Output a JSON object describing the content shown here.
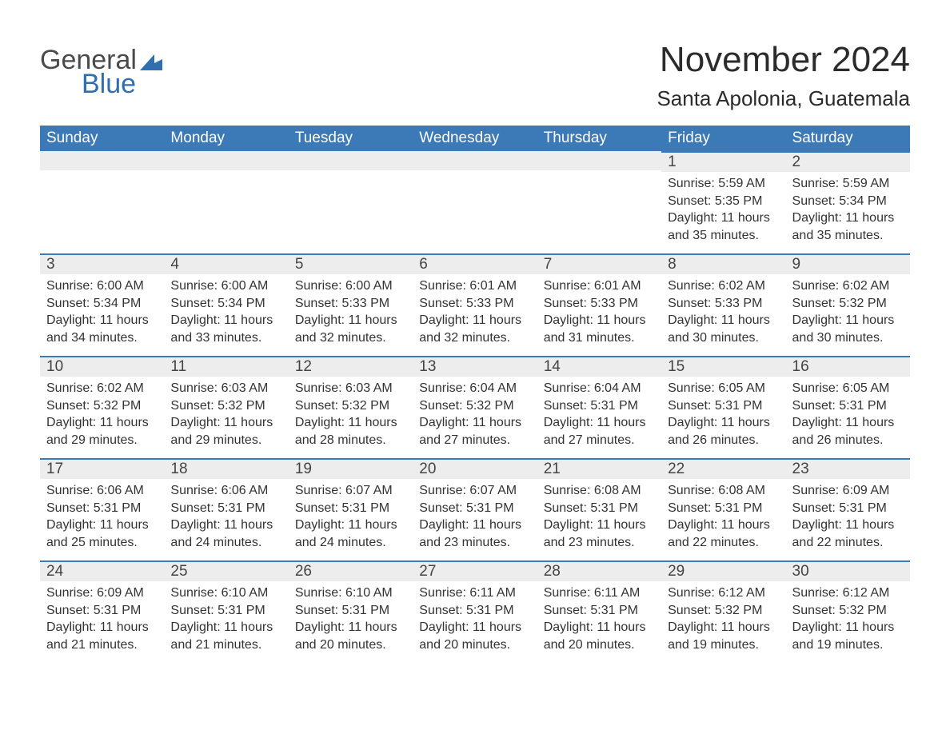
{
  "logo": {
    "word1": "General",
    "word2": "Blue",
    "icon_color": "#2f6fb0"
  },
  "title": "November 2024",
  "location": "Santa Apolonia, Guatemala",
  "colors": {
    "header_bg": "#3b79b7",
    "header_text": "#ffffff",
    "daynum_bg": "#ededed",
    "daynum_border": "#3b79b7",
    "text": "#333333",
    "background": "#ffffff"
  },
  "columns": [
    "Sunday",
    "Monday",
    "Tuesday",
    "Wednesday",
    "Thursday",
    "Friday",
    "Saturday"
  ],
  "weeks": [
    [
      null,
      null,
      null,
      null,
      null,
      {
        "n": "1",
        "sr": "Sunrise: 5:59 AM",
        "ss": "Sunset: 5:35 PM",
        "dl": "Daylight: 11 hours and 35 minutes."
      },
      {
        "n": "2",
        "sr": "Sunrise: 5:59 AM",
        "ss": "Sunset: 5:34 PM",
        "dl": "Daylight: 11 hours and 35 minutes."
      }
    ],
    [
      {
        "n": "3",
        "sr": "Sunrise: 6:00 AM",
        "ss": "Sunset: 5:34 PM",
        "dl": "Daylight: 11 hours and 34 minutes."
      },
      {
        "n": "4",
        "sr": "Sunrise: 6:00 AM",
        "ss": "Sunset: 5:34 PM",
        "dl": "Daylight: 11 hours and 33 minutes."
      },
      {
        "n": "5",
        "sr": "Sunrise: 6:00 AM",
        "ss": "Sunset: 5:33 PM",
        "dl": "Daylight: 11 hours and 32 minutes."
      },
      {
        "n": "6",
        "sr": "Sunrise: 6:01 AM",
        "ss": "Sunset: 5:33 PM",
        "dl": "Daylight: 11 hours and 32 minutes."
      },
      {
        "n": "7",
        "sr": "Sunrise: 6:01 AM",
        "ss": "Sunset: 5:33 PM",
        "dl": "Daylight: 11 hours and 31 minutes."
      },
      {
        "n": "8",
        "sr": "Sunrise: 6:02 AM",
        "ss": "Sunset: 5:33 PM",
        "dl": "Daylight: 11 hours and 30 minutes."
      },
      {
        "n": "9",
        "sr": "Sunrise: 6:02 AM",
        "ss": "Sunset: 5:32 PM",
        "dl": "Daylight: 11 hours and 30 minutes."
      }
    ],
    [
      {
        "n": "10",
        "sr": "Sunrise: 6:02 AM",
        "ss": "Sunset: 5:32 PM",
        "dl": "Daylight: 11 hours and 29 minutes."
      },
      {
        "n": "11",
        "sr": "Sunrise: 6:03 AM",
        "ss": "Sunset: 5:32 PM",
        "dl": "Daylight: 11 hours and 29 minutes."
      },
      {
        "n": "12",
        "sr": "Sunrise: 6:03 AM",
        "ss": "Sunset: 5:32 PM",
        "dl": "Daylight: 11 hours and 28 minutes."
      },
      {
        "n": "13",
        "sr": "Sunrise: 6:04 AM",
        "ss": "Sunset: 5:32 PM",
        "dl": "Daylight: 11 hours and 27 minutes."
      },
      {
        "n": "14",
        "sr": "Sunrise: 6:04 AM",
        "ss": "Sunset: 5:31 PM",
        "dl": "Daylight: 11 hours and 27 minutes."
      },
      {
        "n": "15",
        "sr": "Sunrise: 6:05 AM",
        "ss": "Sunset: 5:31 PM",
        "dl": "Daylight: 11 hours and 26 minutes."
      },
      {
        "n": "16",
        "sr": "Sunrise: 6:05 AM",
        "ss": "Sunset: 5:31 PM",
        "dl": "Daylight: 11 hours and 26 minutes."
      }
    ],
    [
      {
        "n": "17",
        "sr": "Sunrise: 6:06 AM",
        "ss": "Sunset: 5:31 PM",
        "dl": "Daylight: 11 hours and 25 minutes."
      },
      {
        "n": "18",
        "sr": "Sunrise: 6:06 AM",
        "ss": "Sunset: 5:31 PM",
        "dl": "Daylight: 11 hours and 24 minutes."
      },
      {
        "n": "19",
        "sr": "Sunrise: 6:07 AM",
        "ss": "Sunset: 5:31 PM",
        "dl": "Daylight: 11 hours and 24 minutes."
      },
      {
        "n": "20",
        "sr": "Sunrise: 6:07 AM",
        "ss": "Sunset: 5:31 PM",
        "dl": "Daylight: 11 hours and 23 minutes."
      },
      {
        "n": "21",
        "sr": "Sunrise: 6:08 AM",
        "ss": "Sunset: 5:31 PM",
        "dl": "Daylight: 11 hours and 23 minutes."
      },
      {
        "n": "22",
        "sr": "Sunrise: 6:08 AM",
        "ss": "Sunset: 5:31 PM",
        "dl": "Daylight: 11 hours and 22 minutes."
      },
      {
        "n": "23",
        "sr": "Sunrise: 6:09 AM",
        "ss": "Sunset: 5:31 PM",
        "dl": "Daylight: 11 hours and 22 minutes."
      }
    ],
    [
      {
        "n": "24",
        "sr": "Sunrise: 6:09 AM",
        "ss": "Sunset: 5:31 PM",
        "dl": "Daylight: 11 hours and 21 minutes."
      },
      {
        "n": "25",
        "sr": "Sunrise: 6:10 AM",
        "ss": "Sunset: 5:31 PM",
        "dl": "Daylight: 11 hours and 21 minutes."
      },
      {
        "n": "26",
        "sr": "Sunrise: 6:10 AM",
        "ss": "Sunset: 5:31 PM",
        "dl": "Daylight: 11 hours and 20 minutes."
      },
      {
        "n": "27",
        "sr": "Sunrise: 6:11 AM",
        "ss": "Sunset: 5:31 PM",
        "dl": "Daylight: 11 hours and 20 minutes."
      },
      {
        "n": "28",
        "sr": "Sunrise: 6:11 AM",
        "ss": "Sunset: 5:31 PM",
        "dl": "Daylight: 11 hours and 20 minutes."
      },
      {
        "n": "29",
        "sr": "Sunrise: 6:12 AM",
        "ss": "Sunset: 5:32 PM",
        "dl": "Daylight: 11 hours and 19 minutes."
      },
      {
        "n": "30",
        "sr": "Sunrise: 6:12 AM",
        "ss": "Sunset: 5:32 PM",
        "dl": "Daylight: 11 hours and 19 minutes."
      }
    ]
  ]
}
